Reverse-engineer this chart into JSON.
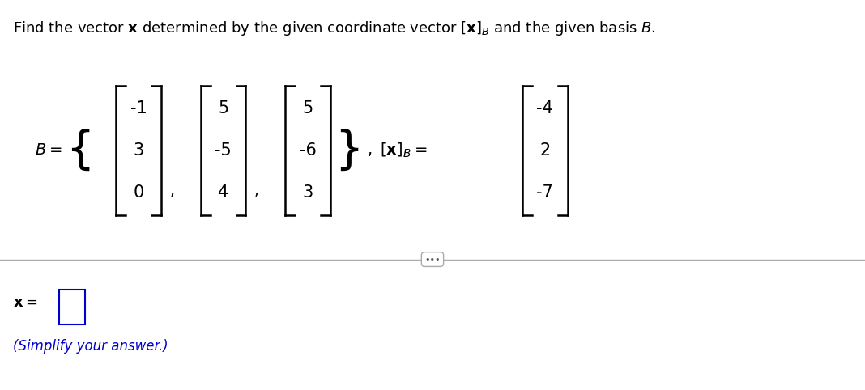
{
  "B_col1": [
    -1,
    3,
    0
  ],
  "B_col2": [
    5,
    -5,
    4
  ],
  "B_col3": [
    5,
    -6,
    3
  ],
  "xB": [
    -4,
    2,
    -7
  ],
  "simplify_text": "(Simplify your answer.)",
  "bg_color": "#ffffff",
  "text_color": "#000000",
  "blue_color": "#0000cc",
  "separator_line_color": "#aaaaaa",
  "font_size_title": 13,
  "font_size_math": 15,
  "font_size_small": 11
}
